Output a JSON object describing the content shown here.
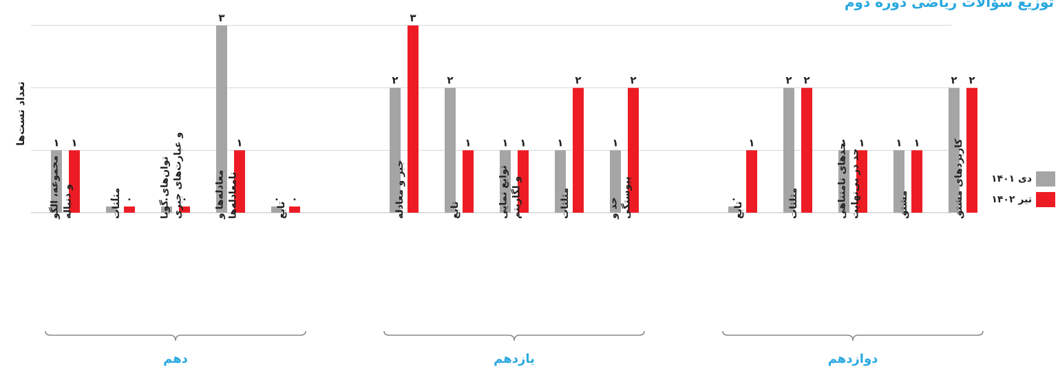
{
  "title": "توزیع سؤالات ریاضی دوره دوم",
  "chart_data": {
    "type": "bar",
    "ylabel": "تعداد تست‌ها",
    "ylim": [
      0,
      3
    ],
    "grid": true,
    "legend_position": "right",
    "series": [
      {
        "name": "دی ۱۴۰۱",
        "color": "#a5a5a5"
      },
      {
        "name": "تیر ۱۴۰۲",
        "color": "#ed1c24"
      }
    ],
    "groups": [
      {
        "name": "دهم",
        "categories": [
          {
            "label": [
              "مجموعه، الگو",
              "و دنباله"
            ],
            "values": [
              1,
              1
            ]
          },
          {
            "label": [
              "مثلثات"
            ],
            "values": [
              0,
              0
            ]
          },
          {
            "label": [
              "توان‌های گویا",
              "و عبارت‌های جبری"
            ],
            "values": [
              0,
              0
            ]
          },
          {
            "label": [
              "معادله‌ها و",
              "نامعادله‌ها"
            ],
            "values": [
              3,
              1
            ]
          },
          {
            "label": [
              "تابع"
            ],
            "values": [
              0,
              0
            ]
          }
        ]
      },
      {
        "name": "یازدهم",
        "categories": [
          {
            "label": [
              "جبر و معادله"
            ],
            "values": [
              2,
              3
            ]
          },
          {
            "label": [
              "تابع"
            ],
            "values": [
              2,
              1
            ]
          },
          {
            "label": [
              "توابع نمایی",
              "و لگاریتم"
            ],
            "values": [
              1,
              1
            ]
          },
          {
            "label": [
              "مثلثات"
            ],
            "values": [
              1,
              2
            ]
          },
          {
            "label": [
              "حد و",
              "پیوستگی"
            ],
            "values": [
              1,
              2
            ]
          }
        ]
      },
      {
        "name": "دوازدهم",
        "categories": [
          {
            "label": [
              "تابع"
            ],
            "values": [
              0,
              1
            ]
          },
          {
            "label": [
              "مثلثات"
            ],
            "values": [
              2,
              2
            ]
          },
          {
            "label": [
              "حدهای نامتناهی",
              "حد در بی‌نهایت"
            ],
            "values": [
              1,
              1
            ]
          },
          {
            "label": [
              "مشتق"
            ],
            "values": [
              1,
              1
            ]
          },
          {
            "label": [
              "کاربردهای مشتق"
            ],
            "values": [
              2,
              2
            ]
          }
        ]
      }
    ]
  }
}
